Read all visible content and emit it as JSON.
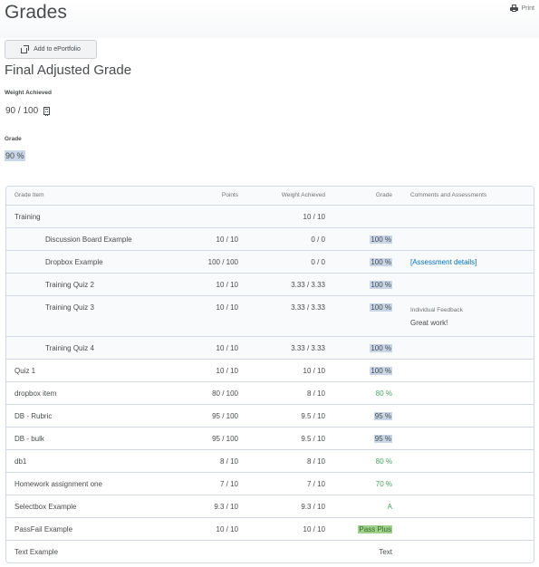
{
  "header": {
    "title": "Grades",
    "print_label": "Print",
    "print_icon": "printer-icon"
  },
  "actions": {
    "eportfolio_label": "Add to ePortfolio",
    "eportfolio_icon": "share-export-icon"
  },
  "final": {
    "title": "Final Adjusted Grade",
    "weight_label": "Weight Achieved",
    "weight_value": "90 / 100",
    "calculator_icon": "calculator-icon",
    "grade_label": "Grade",
    "grade_value": "90 %"
  },
  "table": {
    "headers": {
      "item": "Grade Item",
      "points": "Points",
      "weight": "Weight Achieved",
      "grade": "Grade",
      "comments": "Comments and Assessments"
    },
    "rows": [
      {
        "name": "Training",
        "points": "",
        "weight": "10 / 10",
        "grade": "",
        "grade_style": "none",
        "comments": "",
        "type": "category"
      },
      {
        "name": "Discussion Board Example",
        "points": "10 / 10",
        "weight": "0 / 0",
        "grade": "100 %",
        "grade_style": "blue",
        "comments": "",
        "type": "child"
      },
      {
        "name": "Dropbox Example",
        "points": "100 / 100",
        "weight": "0 / 0",
        "grade": "100 %",
        "grade_style": "blue",
        "comments": "[Assessment details]",
        "type": "child"
      },
      {
        "name": "Training Quiz 2",
        "points": "10 / 10",
        "weight": "3.33 / 3.33",
        "grade": "100 %",
        "grade_style": "blue",
        "comments": "",
        "type": "child"
      },
      {
        "name": "Training Quiz 3",
        "points": "10 / 10",
        "weight": "3.33 / 3.33",
        "grade": "100 %",
        "grade_style": "blue",
        "feedback_label": "Individual Feedback",
        "feedback_text": "Great work!",
        "type": "child-tall"
      },
      {
        "name": "Training Quiz 4",
        "points": "10 / 10",
        "weight": "3.33 / 3.33",
        "grade": "100 %",
        "grade_style": "blue",
        "comments": "",
        "type": "child"
      },
      {
        "name": "Quiz 1",
        "points": "10 / 10",
        "weight": "10 / 10",
        "grade": "100 %",
        "grade_style": "blue",
        "comments": "",
        "type": "item"
      },
      {
        "name": "dropbox item",
        "points": "80 / 100",
        "weight": "8 / 10",
        "grade": "80 %",
        "grade_style": "green",
        "comments": "",
        "type": "item"
      },
      {
        "name": "DB - Rubric",
        "points": "95 / 100",
        "weight": "9.5 / 10",
        "grade": "95 %",
        "grade_style": "blue",
        "comments": "",
        "type": "item"
      },
      {
        "name": "DB - bulk",
        "points": "95 / 100",
        "weight": "9.5 / 10",
        "grade": "95 %",
        "grade_style": "blue",
        "comments": "",
        "type": "item"
      },
      {
        "name": "db1",
        "points": "8 / 10",
        "weight": "8 / 10",
        "grade": "80 %",
        "grade_style": "green",
        "comments": "",
        "type": "item"
      },
      {
        "name": "Homework assignment one",
        "points": "7 / 10",
        "weight": "7 / 10",
        "grade": "70 %",
        "grade_style": "green",
        "comments": "",
        "type": "item"
      },
      {
        "name": "Selectbox Example",
        "points": "9.3 / 10",
        "weight": "9.3 / 10",
        "grade": "A",
        "grade_style": "letter",
        "comments": "",
        "type": "item"
      },
      {
        "name": "PassFail Example",
        "points": "10 / 10",
        "weight": "10 / 10",
        "grade": "Pass Plus",
        "grade_style": "greenbg",
        "comments": "",
        "type": "item"
      },
      {
        "name": "Text Example",
        "points": "",
        "weight": "",
        "grade": "Text",
        "grade_style": "none",
        "comments": "",
        "type": "item"
      }
    ]
  },
  "colors": {
    "highlight_blue": "#c8d6e8",
    "grade_green": "#46a661",
    "link_blue": "#006fbf",
    "border": "#d3d9e3"
  }
}
